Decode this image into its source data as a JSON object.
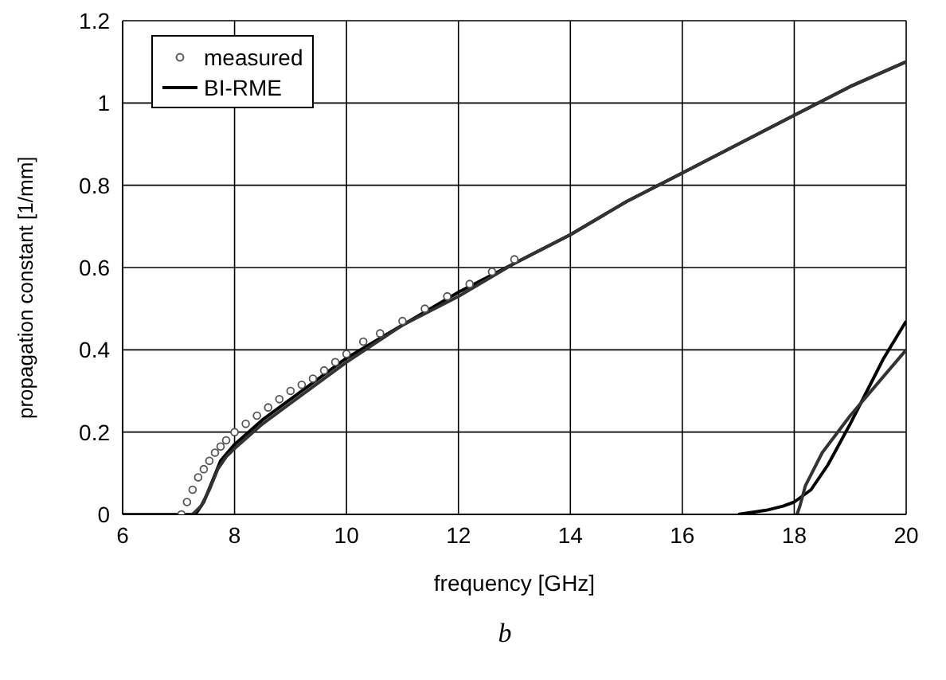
{
  "chart_data": {
    "type": "line",
    "xlabel": "frequency [GHz]",
    "ylabel": "propagation constant [1/mm]",
    "annotations": [
      "b"
    ],
    "xlim": [
      6,
      20
    ],
    "xticks": [
      6,
      8,
      10,
      12,
      14,
      16,
      18,
      20
    ],
    "ylim": [
      0,
      1.2
    ],
    "yticks": [
      0,
      0.2,
      0.4,
      0.6,
      0.8,
      1,
      1.2
    ],
    "grid": true,
    "legend": "top left",
    "series": [
      {
        "name": "measured",
        "type": "scatter",
        "marker": "circle",
        "color": "#555555",
        "x": [
          7.05,
          7.15,
          7.25,
          7.35,
          7.45,
          7.55,
          7.65,
          7.75,
          7.85,
          8,
          8.2,
          8.4,
          8.6,
          8.8,
          9,
          9.2,
          9.4,
          9.6,
          9.8,
          10,
          10.3,
          10.6,
          11,
          11.4,
          11.8,
          12.2,
          12.6,
          13
        ],
        "values": [
          0,
          0.03,
          0.06,
          0.09,
          0.11,
          0.13,
          0.15,
          0.165,
          0.18,
          0.2,
          0.22,
          0.24,
          0.26,
          0.28,
          0.3,
          0.315,
          0.33,
          0.35,
          0.37,
          0.39,
          0.42,
          0.44,
          0.47,
          0.5,
          0.53,
          0.56,
          0.59,
          0.62
        ]
      },
      {
        "name": "BI-RME",
        "color": "#000000",
        "x": [
          6,
          7,
          7.3,
          7.45,
          7.6,
          7.75,
          8,
          8.5,
          9,
          9.5,
          10,
          11,
          12,
          13,
          14,
          15,
          16,
          17,
          18,
          19,
          20,
          null,
          17,
          17.5,
          17.8,
          18,
          18.3,
          18.6,
          19,
          19.3,
          19.6,
          20
        ],
        "values": [
          0,
          0,
          0,
          0.03,
          0.08,
          0.13,
          0.17,
          0.23,
          0.28,
          0.33,
          0.38,
          0.46,
          0.54,
          0.61,
          0.68,
          0.76,
          0.83,
          0.9,
          0.97,
          1.04,
          1.1,
          null,
          0,
          0.01,
          0.02,
          0.03,
          0.06,
          0.12,
          0.22,
          0.3,
          0.38,
          0.47
        ]
      },
      {
        "color": "#333333",
        "x": [
          6,
          7,
          7.25,
          7.4,
          7.55,
          7.7,
          7.85,
          8,
          8.5,
          9,
          9.5,
          10,
          11,
          12,
          13,
          14,
          15,
          16,
          17,
          18,
          19,
          20,
          null,
          18.05,
          18.1,
          18.2,
          18.5,
          19,
          19.5,
          20
        ],
        "values": [
          0,
          0,
          0,
          0.02,
          0.06,
          0.11,
          0.14,
          0.16,
          0.22,
          0.27,
          0.32,
          0.37,
          0.46,
          0.53,
          0.61,
          0.68,
          0.76,
          0.83,
          0.9,
          0.97,
          1.04,
          1.1,
          null,
          0,
          0.02,
          0.07,
          0.15,
          0.24,
          0.32,
          0.4
        ]
      }
    ]
  }
}
